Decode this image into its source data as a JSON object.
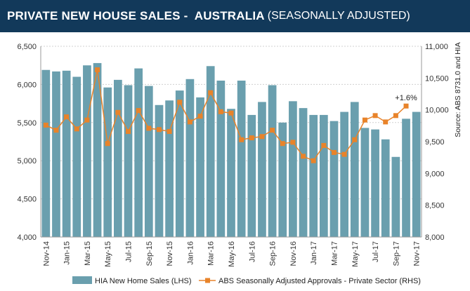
{
  "header": {
    "title_main": "PRIVATE NEW HOUSE SALES -  AUSTRALIA",
    "title_sub": "(SEASONALLY ADJUSTED)"
  },
  "source_note": "Source: ABS 8731.0 and HIA",
  "chart_data": {
    "type": "bar",
    "categories": [
      "Nov-14",
      "Dec-14",
      "Jan-15",
      "Feb-15",
      "Mar-15",
      "Apr-15",
      "May-15",
      "Jun-15",
      "Jul-15",
      "Aug-15",
      "Sep-15",
      "Oct-15",
      "Nov-15",
      "Dec-15",
      "Jan-16",
      "Feb-16",
      "Mar-16",
      "Apr-16",
      "May-16",
      "Jun-16",
      "Jul-16",
      "Aug-16",
      "Sep-16",
      "Oct-16",
      "Nov-16",
      "Dec-16",
      "Jan-17",
      "Feb-17",
      "Mar-17",
      "Apr-17",
      "May-17",
      "Jun-17",
      "Jul-17",
      "Aug-17",
      "Sep-17",
      "Oct-17",
      "Nov-17"
    ],
    "x_tick_labels": [
      "Nov-14",
      "Jan-15",
      "Mar-15",
      "May-15",
      "Jul-15",
      "Sep-15",
      "Nov-15",
      "Jan-16",
      "Mar-16",
      "May-16",
      "Jul-16",
      "Sep-16",
      "Nov-16",
      "Jan-17",
      "Mar-17",
      "May-17",
      "Jul-17",
      "Sep-17",
      "Nov-17"
    ],
    "series": [
      {
        "name": "HIA New Home Sales (LHS)",
        "type": "bar",
        "axis": "left",
        "color": "#6a9fae",
        "values": [
          6190,
          6170,
          6180,
          6100,
          6250,
          6280,
          5960,
          6060,
          5990,
          6210,
          5980,
          5730,
          5790,
          5920,
          6070,
          5830,
          6240,
          6050,
          5680,
          6050,
          5600,
          5770,
          5990,
          5500,
          5780,
          5690,
          5600,
          5600,
          5520,
          5640,
          5770,
          5430,
          5410,
          5280,
          5050,
          5550,
          5640
        ]
      },
      {
        "name": "ABS Seasonally Adjusted Approvals - Private Sector (RHS)",
        "type": "line",
        "axis": "right",
        "color": "#e8832a",
        "values": [
          9760,
          9680,
          9890,
          9700,
          9840,
          10630,
          9470,
          9960,
          9660,
          9990,
          9710,
          9690,
          9660,
          10120,
          9810,
          9900,
          10270,
          9970,
          9950,
          9530,
          9560,
          9580,
          9680,
          9470,
          9490,
          9270,
          9200,
          9440,
          9330,
          9300,
          9530,
          9840,
          9910,
          9810,
          9910,
          10060,
          null
        ]
      }
    ],
    "y_left": {
      "ticks": [
        "4,000",
        "4,500",
        "5,000",
        "5,500",
        "6,000",
        "6,500"
      ],
      "ylim": [
        4000,
        6500
      ]
    },
    "y_right": {
      "ticks": [
        "8,000",
        "8,500",
        "9,000",
        "9,500",
        "10,000",
        "10,500",
        "11,000"
      ],
      "ylim": [
        8000,
        11000
      ]
    },
    "annotation": {
      "text": "+1.6%",
      "series": 1,
      "index": 35
    },
    "grid": true,
    "legend_position": "bottom"
  }
}
